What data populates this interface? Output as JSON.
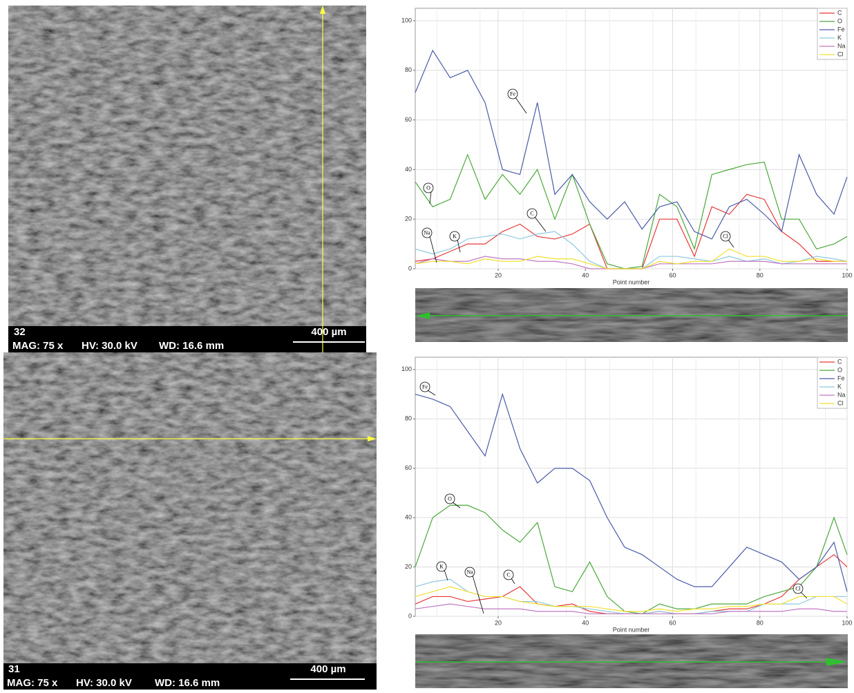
{
  "images": [
    {
      "number": "32",
      "mag": "MAG: 75 x",
      "hv": "HV: 30.0 kV",
      "wd": "WD: 16.6 mm",
      "scale": "400 µm"
    },
    {
      "number": "31",
      "mag": "MAG: 75 x",
      "hv": "HV: 30.0 kV",
      "wd": "WD: 16.6 mm",
      "scale": "400 µm"
    }
  ],
  "chart_data": [
    {
      "type": "line",
      "xlabel": "Point number",
      "grid": true,
      "legend": "upper right",
      "x": [
        1,
        5,
        9,
        13,
        17,
        21,
        25,
        29,
        33,
        37,
        41,
        45,
        49,
        53,
        57,
        61,
        65,
        69,
        73,
        77,
        81,
        85,
        89,
        93,
        97,
        100
      ],
      "xlim": [
        1,
        100
      ],
      "ylim": [
        0,
        105
      ],
      "xticks": [
        20,
        40,
        60,
        80,
        100
      ],
      "yticks": [
        0,
        20,
        40,
        60,
        80,
        100
      ],
      "series": [
        {
          "name": "C",
          "color": "#e83838",
          "values": [
            3,
            4,
            7,
            10,
            10,
            15,
            18,
            13,
            12,
            14,
            18,
            0,
            0,
            0,
            20,
            20,
            5,
            25,
            22,
            30,
            28,
            15,
            10,
            3,
            3,
            3
          ]
        },
        {
          "name": "O",
          "color": "#4aa83a",
          "values": [
            35,
            25,
            28,
            46,
            28,
            38,
            30,
            40,
            20,
            38,
            18,
            2,
            0,
            1,
            30,
            25,
            8,
            38,
            40,
            42,
            43,
            20,
            20,
            8,
            10,
            13
          ]
        },
        {
          "name": "Fe",
          "color": "#4a5aa8",
          "values": [
            71,
            88,
            77,
            80,
            67,
            40,
            38,
            67,
            30,
            38,
            27,
            20,
            27,
            16,
            25,
            27,
            15,
            12,
            25,
            28,
            22,
            15,
            46,
            30,
            22,
            37
          ]
        },
        {
          "name": "K",
          "color": "#8ec8e0",
          "values": [
            8,
            6,
            8,
            12,
            13,
            14,
            12,
            14,
            15,
            10,
            3,
            0,
            0,
            0,
            5,
            5,
            4,
            3,
            5,
            3,
            4,
            2,
            3,
            5,
            4,
            3
          ]
        },
        {
          "name": "Na",
          "color": "#c078c0",
          "values": [
            2,
            4,
            3,
            3,
            5,
            4,
            4,
            3,
            3,
            2,
            0,
            0,
            0,
            0,
            2,
            2,
            2,
            2,
            3,
            3,
            3,
            2,
            2,
            2,
            2,
            2
          ]
        },
        {
          "name": "Cl",
          "color": "#f0e030",
          "values": [
            2,
            3,
            3,
            2,
            4,
            3,
            3,
            5,
            4,
            4,
            2,
            0,
            0,
            0,
            3,
            2,
            3,
            3,
            8,
            5,
            5,
            3,
            3,
            4,
            3,
            3
          ]
        }
      ],
      "annotations": [
        "Fe",
        "O",
        "C",
        "Na",
        "K",
        "Cl"
      ]
    },
    {
      "type": "line",
      "xlabel": "Point number",
      "grid": true,
      "legend": "upper right",
      "x": [
        1,
        5,
        9,
        13,
        17,
        21,
        25,
        29,
        33,
        37,
        41,
        45,
        49,
        53,
        57,
        61,
        65,
        69,
        73,
        77,
        81,
        85,
        89,
        93,
        97,
        100
      ],
      "xlim": [
        1,
        100
      ],
      "ylim": [
        0,
        105
      ],
      "xticks": [
        20,
        40,
        60,
        80,
        100
      ],
      "yticks": [
        0,
        20,
        40,
        60,
        80,
        100
      ],
      "series": [
        {
          "name": "C",
          "color": "#e83838",
          "values": [
            5,
            8,
            8,
            6,
            7,
            8,
            12,
            5,
            4,
            5,
            2,
            1,
            1,
            1,
            2,
            1,
            1,
            2,
            3,
            3,
            5,
            8,
            15,
            20,
            25,
            20
          ]
        },
        {
          "name": "O",
          "color": "#4aa83a",
          "values": [
            20,
            40,
            45,
            45,
            42,
            35,
            30,
            38,
            12,
            10,
            22,
            8,
            2,
            1,
            5,
            3,
            3,
            5,
            5,
            5,
            8,
            10,
            12,
            20,
            40,
            25
          ]
        },
        {
          "name": "Fe",
          "color": "#4a5aa8",
          "values": [
            90,
            88,
            85,
            75,
            65,
            90,
            68,
            54,
            60,
            60,
            55,
            40,
            28,
            25,
            20,
            15,
            12,
            12,
            20,
            28,
            25,
            22,
            15,
            20,
            30,
            10
          ]
        },
        {
          "name": "K",
          "color": "#8ec8e0",
          "values": [
            12,
            14,
            15,
            10,
            8,
            8,
            6,
            6,
            4,
            4,
            3,
            2,
            1,
            1,
            2,
            1,
            1,
            2,
            2,
            2,
            5,
            5,
            5,
            8,
            8,
            8
          ]
        },
        {
          "name": "Na",
          "color": "#c078c0",
          "values": [
            3,
            4,
            5,
            4,
            3,
            3,
            3,
            2,
            2,
            2,
            1,
            1,
            1,
            1,
            1,
            1,
            1,
            1,
            2,
            2,
            2,
            2,
            3,
            3,
            2,
            2
          ]
        },
        {
          "name": "Cl",
          "color": "#f0e030",
          "values": [
            8,
            10,
            12,
            10,
            8,
            8,
            6,
            5,
            4,
            4,
            4,
            3,
            2,
            2,
            3,
            2,
            3,
            3,
            4,
            4,
            5,
            5,
            8,
            8,
            8,
            5
          ]
        }
      ],
      "annotations": [
        "Fe",
        "O",
        "K",
        "Na",
        "C",
        "Cl"
      ]
    }
  ]
}
